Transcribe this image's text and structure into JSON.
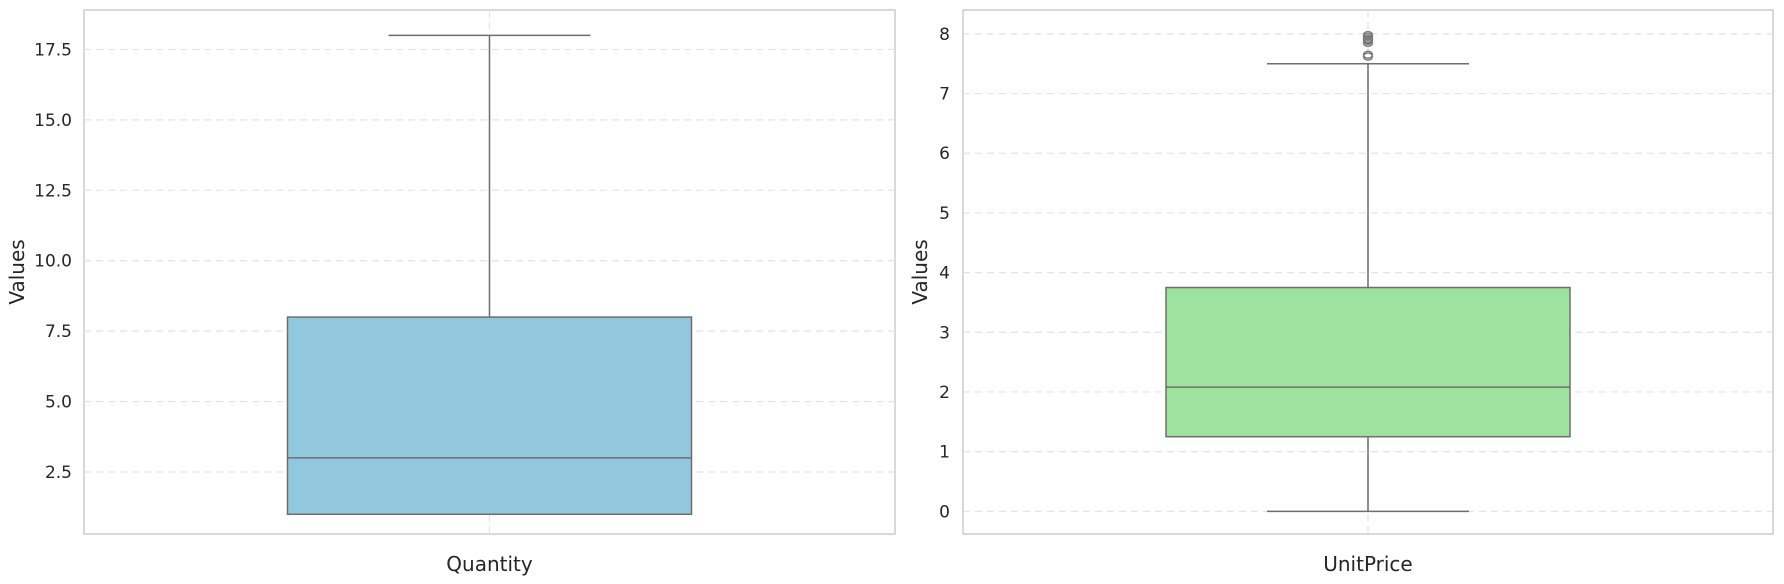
{
  "chart_data": [
    {
      "type": "box",
      "category": "Quantity",
      "ylabel": "Values",
      "ylim": [
        0.3,
        18.9
      ],
      "yticks": [
        2.5,
        5.0,
        7.5,
        10.0,
        12.5,
        15.0,
        17.5
      ],
      "ytick_labels": [
        "2.5",
        "5.0",
        "7.5",
        "10.0",
        "12.5",
        "15.0",
        "17.5"
      ],
      "grid": true,
      "color": "#92c8de",
      "stats": {
        "whisker_low": 1,
        "q1": 1,
        "median": 3,
        "q3": 8,
        "whisker_high": 18
      },
      "outliers": []
    },
    {
      "type": "box",
      "category": "UnitPrice",
      "ylabel": "Values",
      "ylim": [
        -0.38,
        8.4
      ],
      "yticks": [
        0,
        1,
        2,
        3,
        4,
        5,
        6,
        7,
        8
      ],
      "ytick_labels": [
        "0",
        "1",
        "2",
        "3",
        "4",
        "5",
        "6",
        "7",
        "8"
      ],
      "grid": true,
      "color": "#9de39d",
      "stats": {
        "whisker_low": 0,
        "q1": 1.25,
        "median": 2.08,
        "q3": 3.75,
        "whisker_high": 7.5
      },
      "outliers": [
        7.62,
        7.65,
        7.85,
        7.88,
        7.9,
        7.92,
        7.95,
        7.98
      ]
    }
  ]
}
